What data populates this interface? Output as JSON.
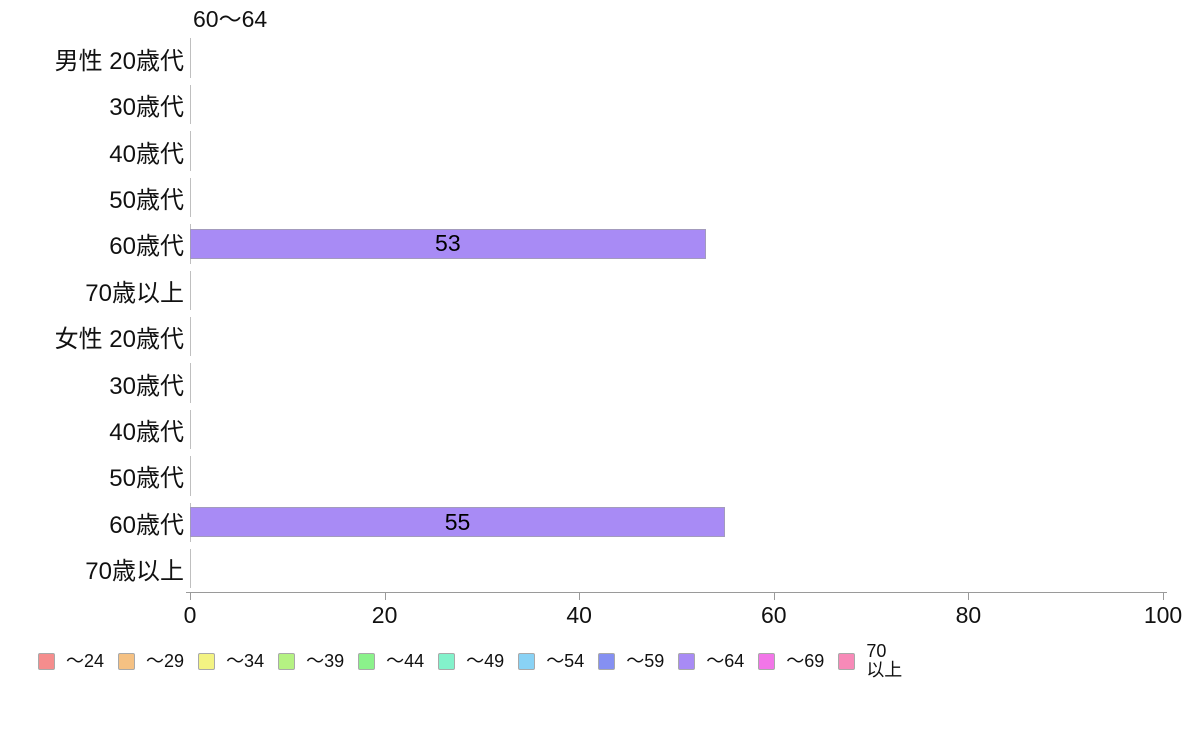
{
  "chart_data": {
    "type": "bar",
    "orientation": "horizontal",
    "title": "60〜64",
    "categories": [
      "男性 20歳代",
      "30歳代",
      "40歳代",
      "50歳代",
      "60歳代",
      "70歳以上",
      "女性 20歳代",
      "30歳代",
      "40歳代",
      "50歳代",
      "60歳代",
      "70歳以上"
    ],
    "xlim": [
      0,
      100
    ],
    "xticks": [
      0,
      20,
      40,
      60,
      80,
      100
    ],
    "grid": false,
    "legend_position": "bottom",
    "series": [
      {
        "name": "〜24",
        "color": "#f58d8d",
        "values": [
          0,
          0,
          0,
          0,
          0,
          0,
          0,
          0,
          0,
          0,
          0,
          0
        ]
      },
      {
        "name": "〜29",
        "color": "#f5c183",
        "values": [
          0,
          0,
          0,
          0,
          0,
          0,
          0,
          0,
          0,
          0,
          0,
          0
        ]
      },
      {
        "name": "〜34",
        "color": "#f3f383",
        "values": [
          0,
          0,
          0,
          0,
          0,
          0,
          0,
          0,
          0,
          0,
          0,
          0
        ]
      },
      {
        "name": "〜39",
        "color": "#b5f283",
        "values": [
          0,
          0,
          0,
          0,
          0,
          0,
          0,
          0,
          0,
          0,
          0,
          0
        ]
      },
      {
        "name": "〜44",
        "color": "#8bf28b",
        "values": [
          0,
          0,
          0,
          0,
          0,
          0,
          0,
          0,
          0,
          0,
          0,
          0
        ]
      },
      {
        "name": "〜49",
        "color": "#83f2cb",
        "values": [
          0,
          0,
          0,
          0,
          0,
          0,
          0,
          0,
          0,
          0,
          0,
          0
        ]
      },
      {
        "name": "〜54",
        "color": "#89d2f5",
        "values": [
          0,
          0,
          0,
          0,
          0,
          0,
          0,
          0,
          0,
          0,
          0,
          0
        ]
      },
      {
        "name": "〜59",
        "color": "#8590f2",
        "values": [
          0,
          0,
          0,
          0,
          0,
          0,
          0,
          0,
          0,
          0,
          0,
          0
        ]
      },
      {
        "name": "〜64",
        "color": "#a88bf5",
        "values": [
          0,
          0,
          0,
          0,
          53,
          0,
          0,
          0,
          0,
          0,
          55,
          0
        ]
      },
      {
        "name": "〜69",
        "color": "#f276e8",
        "values": [
          0,
          0,
          0,
          0,
          0,
          0,
          0,
          0,
          0,
          0,
          0,
          0
        ]
      },
      {
        "name": "70以上",
        "name_lines": [
          "70",
          "以上"
        ],
        "color": "#f78ab8",
        "values": [
          0,
          0,
          0,
          0,
          0,
          0,
          0,
          0,
          0,
          0,
          0,
          0
        ]
      }
    ],
    "bar_value_labels": [
      53,
      55
    ]
  },
  "colors": {
    "background": "#ffffff",
    "text": "#111111",
    "axis_line": "#9a9a9a",
    "zero_tick": "#bfbfbf",
    "bar_border": "#a39bbd",
    "swatch_border": "#a9a9a9"
  }
}
